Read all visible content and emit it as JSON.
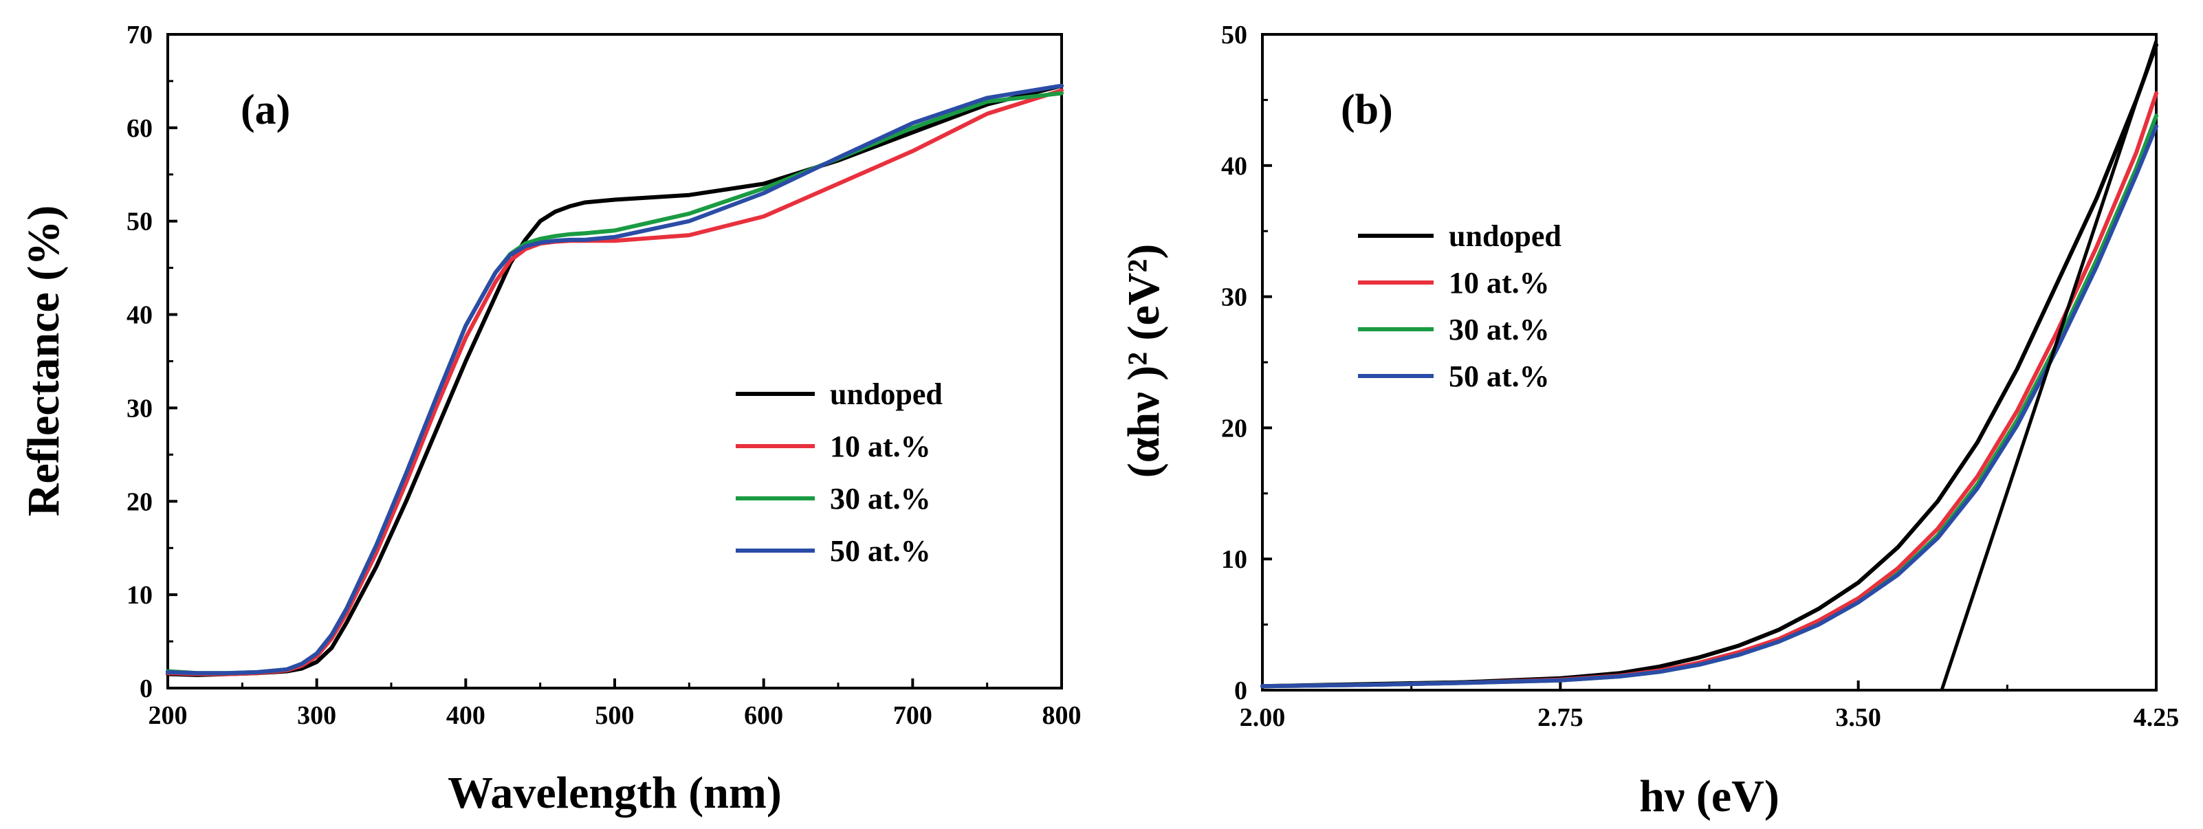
{
  "chart_data": [
    {
      "type": "line",
      "panel_label": "(a)",
      "xlabel": "Wavelength (nm)",
      "ylabel": "Reflectance (%)",
      "xlim": [
        200,
        800
      ],
      "ylim": [
        0,
        70
      ],
      "xticks": [
        200,
        300,
        400,
        500,
        600,
        700,
        800
      ],
      "yticks": [
        0,
        10,
        20,
        30,
        40,
        50,
        60,
        70
      ],
      "x": [
        200,
        220,
        240,
        260,
        280,
        290,
        300,
        310,
        320,
        340,
        360,
        380,
        400,
        420,
        430,
        440,
        450,
        460,
        470,
        480,
        500,
        550,
        600,
        650,
        700,
        750,
        800
      ],
      "legend_position": "center-right",
      "series": [
        {
          "name": "undoped",
          "color": "#000000",
          "values": [
            1.5,
            1.4,
            1.5,
            1.6,
            1.8,
            2.1,
            2.8,
            4.3,
            7.0,
            13.0,
            20.0,
            27.5,
            35.0,
            42.0,
            45.5,
            48.0,
            50.0,
            51.0,
            51.6,
            52.0,
            52.3,
            52.8,
            54.0,
            56.5,
            59.5,
            62.5,
            64.5
          ]
        },
        {
          "name": "10 at.%",
          "color": "#e8313d",
          "values": [
            1.6,
            1.5,
            1.5,
            1.6,
            1.9,
            2.4,
            3.4,
            5.3,
            8.0,
            14.5,
            22.0,
            30.0,
            37.5,
            43.5,
            45.8,
            47.0,
            47.6,
            47.8,
            47.9,
            47.9,
            47.9,
            48.5,
            50.5,
            54.0,
            57.5,
            61.5,
            64.0
          ]
        },
        {
          "name": "30 at.%",
          "color": "#1a9b43",
          "values": [
            1.8,
            1.6,
            1.6,
            1.7,
            2.0,
            2.6,
            3.7,
            5.7,
            8.5,
            15.3,
            23.0,
            31.0,
            38.8,
            44.5,
            46.5,
            47.6,
            48.1,
            48.4,
            48.6,
            48.7,
            49.0,
            50.8,
            53.5,
            56.7,
            60.0,
            62.8,
            63.7
          ]
        },
        {
          "name": "50 at.%",
          "color": "#2b4ca6",
          "values": [
            1.7,
            1.6,
            1.6,
            1.7,
            2.0,
            2.6,
            3.7,
            5.7,
            8.5,
            15.3,
            23.0,
            31.0,
            38.8,
            44.5,
            46.4,
            47.3,
            47.7,
            47.9,
            48.0,
            48.0,
            48.3,
            50.0,
            53.0,
            56.8,
            60.5,
            63.2,
            64.5
          ]
        }
      ]
    },
    {
      "type": "line",
      "panel_label": "(b)",
      "xlabel": "hν (eV)",
      "ylabel": "(αhν )² (eV²)",
      "xlim": [
        2.0,
        4.25
      ],
      "ylim": [
        0,
        50
      ],
      "xticks": [
        "2.00",
        "2.75",
        "3.50",
        "4.25"
      ],
      "yticks": [
        0,
        10,
        20,
        30,
        40,
        50
      ],
      "x": [
        2.0,
        2.25,
        2.5,
        2.75,
        2.9,
        3.0,
        3.1,
        3.2,
        3.3,
        3.4,
        3.5,
        3.6,
        3.7,
        3.8,
        3.9,
        4.0,
        4.1,
        4.2,
        4.25
      ],
      "legend_position": "upper-left",
      "series": [
        {
          "name": "undoped",
          "color": "#000000",
          "values": [
            0.3,
            0.45,
            0.6,
            0.9,
            1.3,
            1.8,
            2.5,
            3.4,
            4.6,
            6.2,
            8.2,
            10.9,
            14.4,
            18.9,
            24.5,
            31.0,
            37.5,
            45.0,
            49.2
          ]
        },
        {
          "name": "10 at.%",
          "color": "#e8313d",
          "values": [
            0.3,
            0.4,
            0.55,
            0.8,
            1.1,
            1.5,
            2.1,
            2.9,
            3.9,
            5.3,
            7.0,
            9.3,
            12.3,
            16.3,
            21.3,
            27.3,
            33.8,
            41.0,
            45.5
          ]
        },
        {
          "name": "30 at.%",
          "color": "#1a9b43",
          "values": [
            0.3,
            0.4,
            0.55,
            0.75,
            1.05,
            1.4,
            1.95,
            2.7,
            3.7,
            5.0,
            6.7,
            8.9,
            11.8,
            15.7,
            20.6,
            26.4,
            32.8,
            39.8,
            43.8
          ]
        },
        {
          "name": "50 at.%",
          "color": "#2b4ca6",
          "values": [
            0.3,
            0.4,
            0.55,
            0.75,
            1.05,
            1.4,
            1.95,
            2.7,
            3.7,
            5.0,
            6.7,
            8.8,
            11.6,
            15.4,
            20.2,
            26.0,
            32.3,
            39.3,
            43.0
          ]
        }
      ],
      "tangent_line": {
        "x": [
          3.71,
          4.25
        ],
        "y": [
          0,
          49.5
        ],
        "color": "#000000"
      }
    }
  ]
}
